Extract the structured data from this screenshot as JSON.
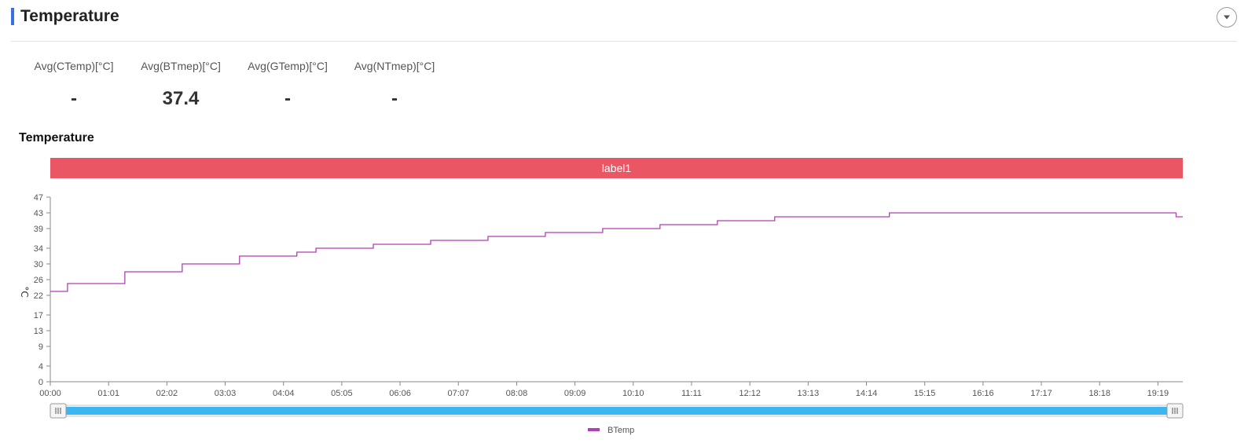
{
  "header": {
    "title": "Temperature"
  },
  "stats": [
    {
      "label": "Avg(CTemp)[°C]",
      "value": "-"
    },
    {
      "label": "Avg(BTmep)[°C]",
      "value": "37.4"
    },
    {
      "label": "Avg(GTemp)[°C]",
      "value": "-"
    },
    {
      "label": "Avg(NTmep)[°C]",
      "value": "-"
    }
  ],
  "section": {
    "title": "Temperature"
  },
  "band": {
    "label": "label1"
  },
  "colors": {
    "accent": "#3a6fe2",
    "band": "#ea5664",
    "series": "#b13fb7",
    "slider": "#3cb6f2"
  },
  "chart_data": {
    "type": "line",
    "title": "",
    "xlabel": "",
    "ylabel": "°C",
    "ylim": [
      0,
      47
    ],
    "yticks": [
      0,
      4,
      9,
      13,
      17,
      22,
      26,
      30,
      34,
      39,
      43,
      47
    ],
    "xticks": [
      "00:00",
      "01:01",
      "02:02",
      "03:03",
      "04:04",
      "05:05",
      "06:06",
      "07:07",
      "08:08",
      "09:09",
      "10:10",
      "11:11",
      "12:12",
      "13:13",
      "14:14",
      "15:15",
      "16:16",
      "17:17",
      "18:18",
      "19:19"
    ],
    "xlim_minutes": [
      0,
      1185
    ],
    "legend": {
      "placement": "bottom-center",
      "entries": [
        "BTemp"
      ]
    },
    "grid": false,
    "series": [
      {
        "name": "BTemp",
        "step": true,
        "x_minutes": [
          0,
          18,
          78,
          138,
          198,
          258,
          278,
          338,
          398,
          458,
          518,
          578,
          638,
          698,
          758,
          878,
          1178,
          1185
        ],
        "values": [
          23,
          25,
          28,
          30,
          32,
          33,
          34,
          35,
          36,
          37,
          38,
          39,
          40,
          41,
          42,
          43,
          42,
          42
        ]
      }
    ]
  }
}
